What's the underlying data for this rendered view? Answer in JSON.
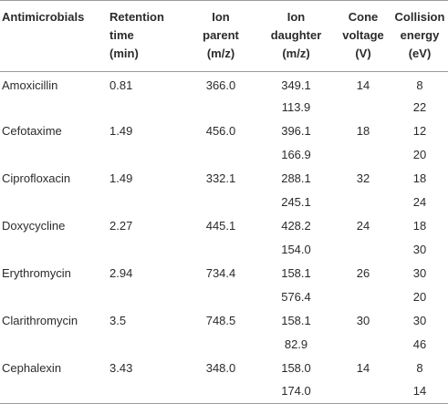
{
  "headers": [
    "Antimicrobials",
    "Retention\ntime\n(min)",
    "Ion\nparent\n(m/z)",
    "Ion\ndaughter\n(m/z)",
    "Cone\nvoltage\n(V)",
    "Collision\nenergy\n(eV)"
  ],
  "rows": [
    [
      "Amoxicillin",
      "0.81",
      "366.0",
      "349.1",
      "14",
      "8"
    ],
    [
      "",
      "",
      "",
      "113.9",
      "",
      "22"
    ],
    [
      "Cefotaxime",
      "1.49",
      "456.0",
      "396.1",
      "18",
      "12"
    ],
    [
      "",
      "",
      "",
      "166.9",
      "",
      "20"
    ],
    [
      "Ciprofloxacin",
      "1.49",
      "332.1",
      "288.1",
      "32",
      "18"
    ],
    [
      "",
      "",
      "",
      "245.1",
      "",
      "24"
    ],
    [
      "Doxycycline",
      "2.27",
      "445.1",
      "428.2",
      "24",
      "18"
    ],
    [
      "",
      "",
      "",
      "154.0",
      "",
      "30"
    ],
    [
      "Erythromycin",
      "2.94",
      "734.4",
      "158.1",
      "26",
      "30"
    ],
    [
      "",
      "",
      "",
      "576.4",
      "",
      "20"
    ],
    [
      "Clarithromycin",
      "3.5",
      "748.5",
      "158.1",
      "30",
      "30"
    ],
    [
      "",
      "",
      "",
      "82.9",
      "",
      "46"
    ],
    [
      "Cephalexin",
      "3.43",
      "348.0",
      "158.0",
      "14",
      "8"
    ],
    [
      "",
      "",
      "",
      "174.0",
      "",
      "14"
    ]
  ]
}
